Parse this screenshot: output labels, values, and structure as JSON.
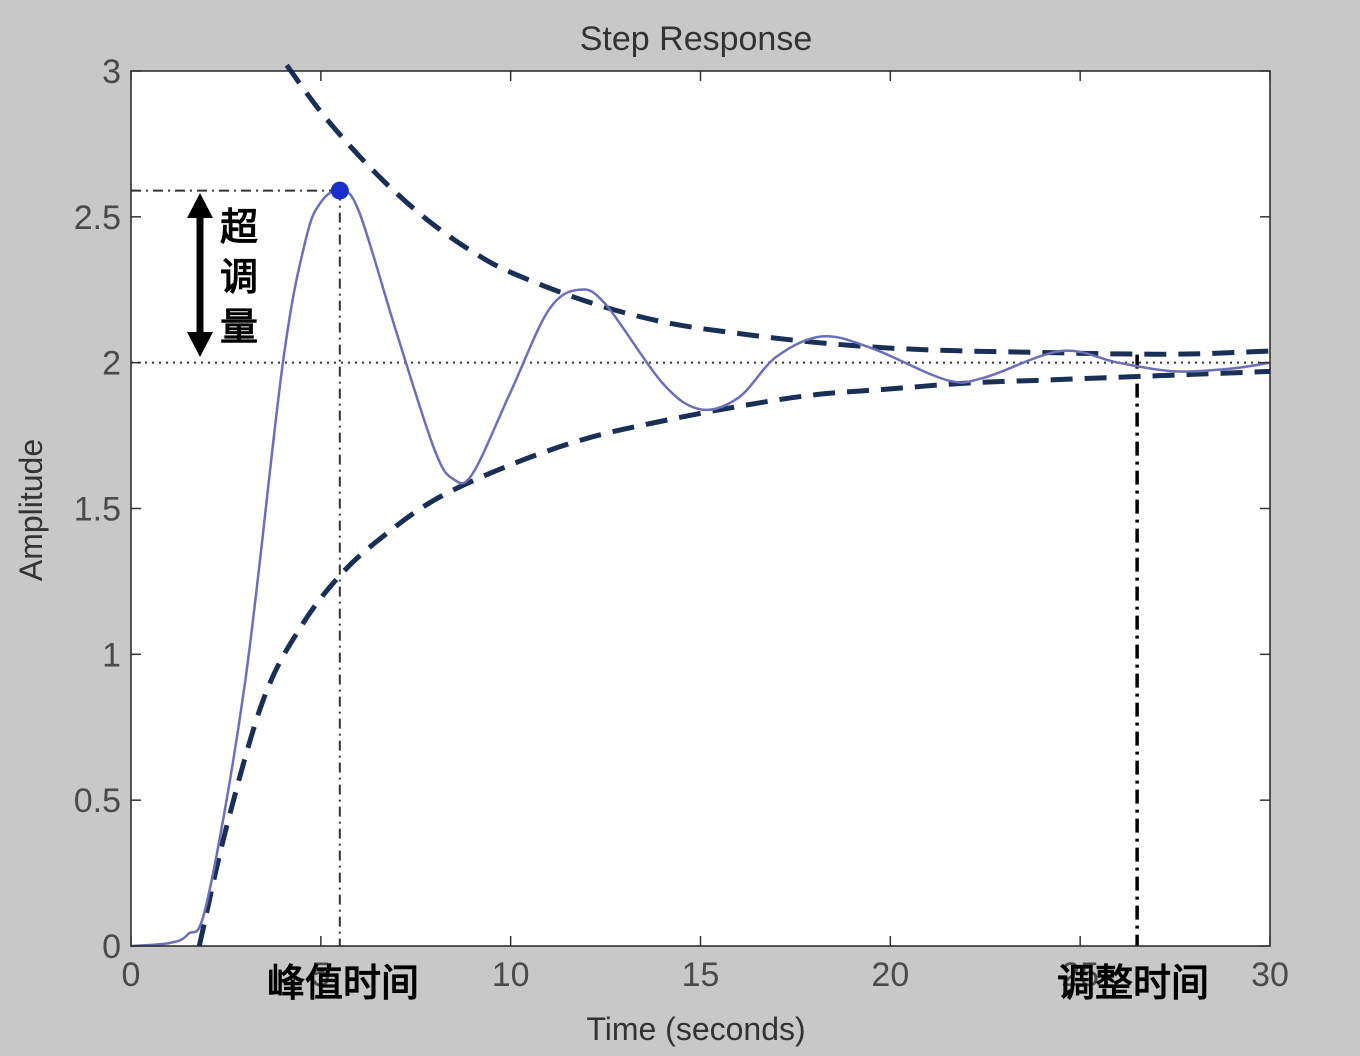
{
  "chart_data": {
    "type": "line",
    "title": "Step Response",
    "xlabel": "Time (seconds)",
    "ylabel": "Amplitude",
    "xlim": [
      0,
      30
    ],
    "ylim": [
      0,
      3
    ],
    "x_ticks": [
      "0",
      "5",
      "10",
      "15",
      "20",
      "25",
      "30"
    ],
    "y_ticks": [
      "0",
      "0.5",
      "1",
      "1.5",
      "2",
      "2.5",
      "3"
    ],
    "grid": false,
    "final_value": 2,
    "peak": {
      "x": 5.5,
      "y": 2.59
    },
    "settling_time": 26.5,
    "series": [
      {
        "values": [
          [
            0,
            0
          ],
          [
            1,
            0.01
          ],
          [
            1.5,
            0.04
          ],
          [
            2,
            0.15
          ],
          [
            3,
            0.9
          ],
          [
            4,
            2.0
          ],
          [
            4.6,
            2.42
          ],
          [
            5.0,
            2.55
          ],
          [
            5.5,
            2.59
          ],
          [
            6.0,
            2.52
          ],
          [
            7.0,
            2.1
          ],
          [
            8.0,
            1.7
          ],
          [
            8.5,
            1.6
          ],
          [
            9.0,
            1.62
          ],
          [
            10.0,
            1.9
          ],
          [
            11.0,
            2.18
          ],
          [
            11.8,
            2.25
          ],
          [
            12.5,
            2.2
          ],
          [
            14.0,
            1.93
          ],
          [
            15.0,
            1.84
          ],
          [
            16.0,
            1.88
          ],
          [
            17.0,
            2.02
          ],
          [
            18.2,
            2.09
          ],
          [
            19.5,
            2.05
          ],
          [
            21.5,
            1.94
          ],
          [
            22.5,
            1.95
          ],
          [
            24.5,
            2.04
          ],
          [
            26.0,
            2.0
          ],
          [
            27.5,
            1.97
          ],
          [
            29.0,
            1.98
          ],
          [
            30,
            2.0
          ]
        ],
        "color": "#6b6fb8"
      }
    ],
    "envelope_upper": [
      [
        4.1,
        3.02
      ],
      [
        5,
        2.86
      ],
      [
        6,
        2.71
      ],
      [
        7,
        2.58
      ],
      [
        8,
        2.47
      ],
      [
        9,
        2.38
      ],
      [
        10,
        2.31
      ],
      [
        12,
        2.21
      ],
      [
        14,
        2.14
      ],
      [
        16,
        2.1
      ],
      [
        18,
        2.07
      ],
      [
        20,
        2.05
      ],
      [
        22,
        2.04
      ],
      [
        24,
        2.035
      ],
      [
        26,
        2.03
      ],
      [
        28,
        2.03
      ],
      [
        30,
        2.04
      ]
    ],
    "envelope_lower": [
      [
        1.8,
        0
      ],
      [
        2.5,
        0.4
      ],
      [
        3.5,
        0.85
      ],
      [
        4.5,
        1.1
      ],
      [
        5.5,
        1.27
      ],
      [
        6.5,
        1.39
      ],
      [
        8,
        1.53
      ],
      [
        10,
        1.65
      ],
      [
        12,
        1.74
      ],
      [
        14,
        1.8
      ],
      [
        16,
        1.85
      ],
      [
        18,
        1.89
      ],
      [
        20,
        1.91
      ],
      [
        22,
        1.93
      ],
      [
        24,
        1.94
      ],
      [
        26,
        1.95
      ],
      [
        28,
        1.96
      ],
      [
        30,
        1.97
      ]
    ],
    "annotations": {
      "overshoot": "超调量",
      "peak_time": "峰值时间",
      "settling_time": "调整时间"
    },
    "colors": {
      "background": "#c8c8c8",
      "plot_area": "#ffffff",
      "response": "#6b6fb8",
      "envelope": "#1a2f55",
      "peak_marker": "#1a2fcc",
      "reference": "#333333"
    }
  }
}
